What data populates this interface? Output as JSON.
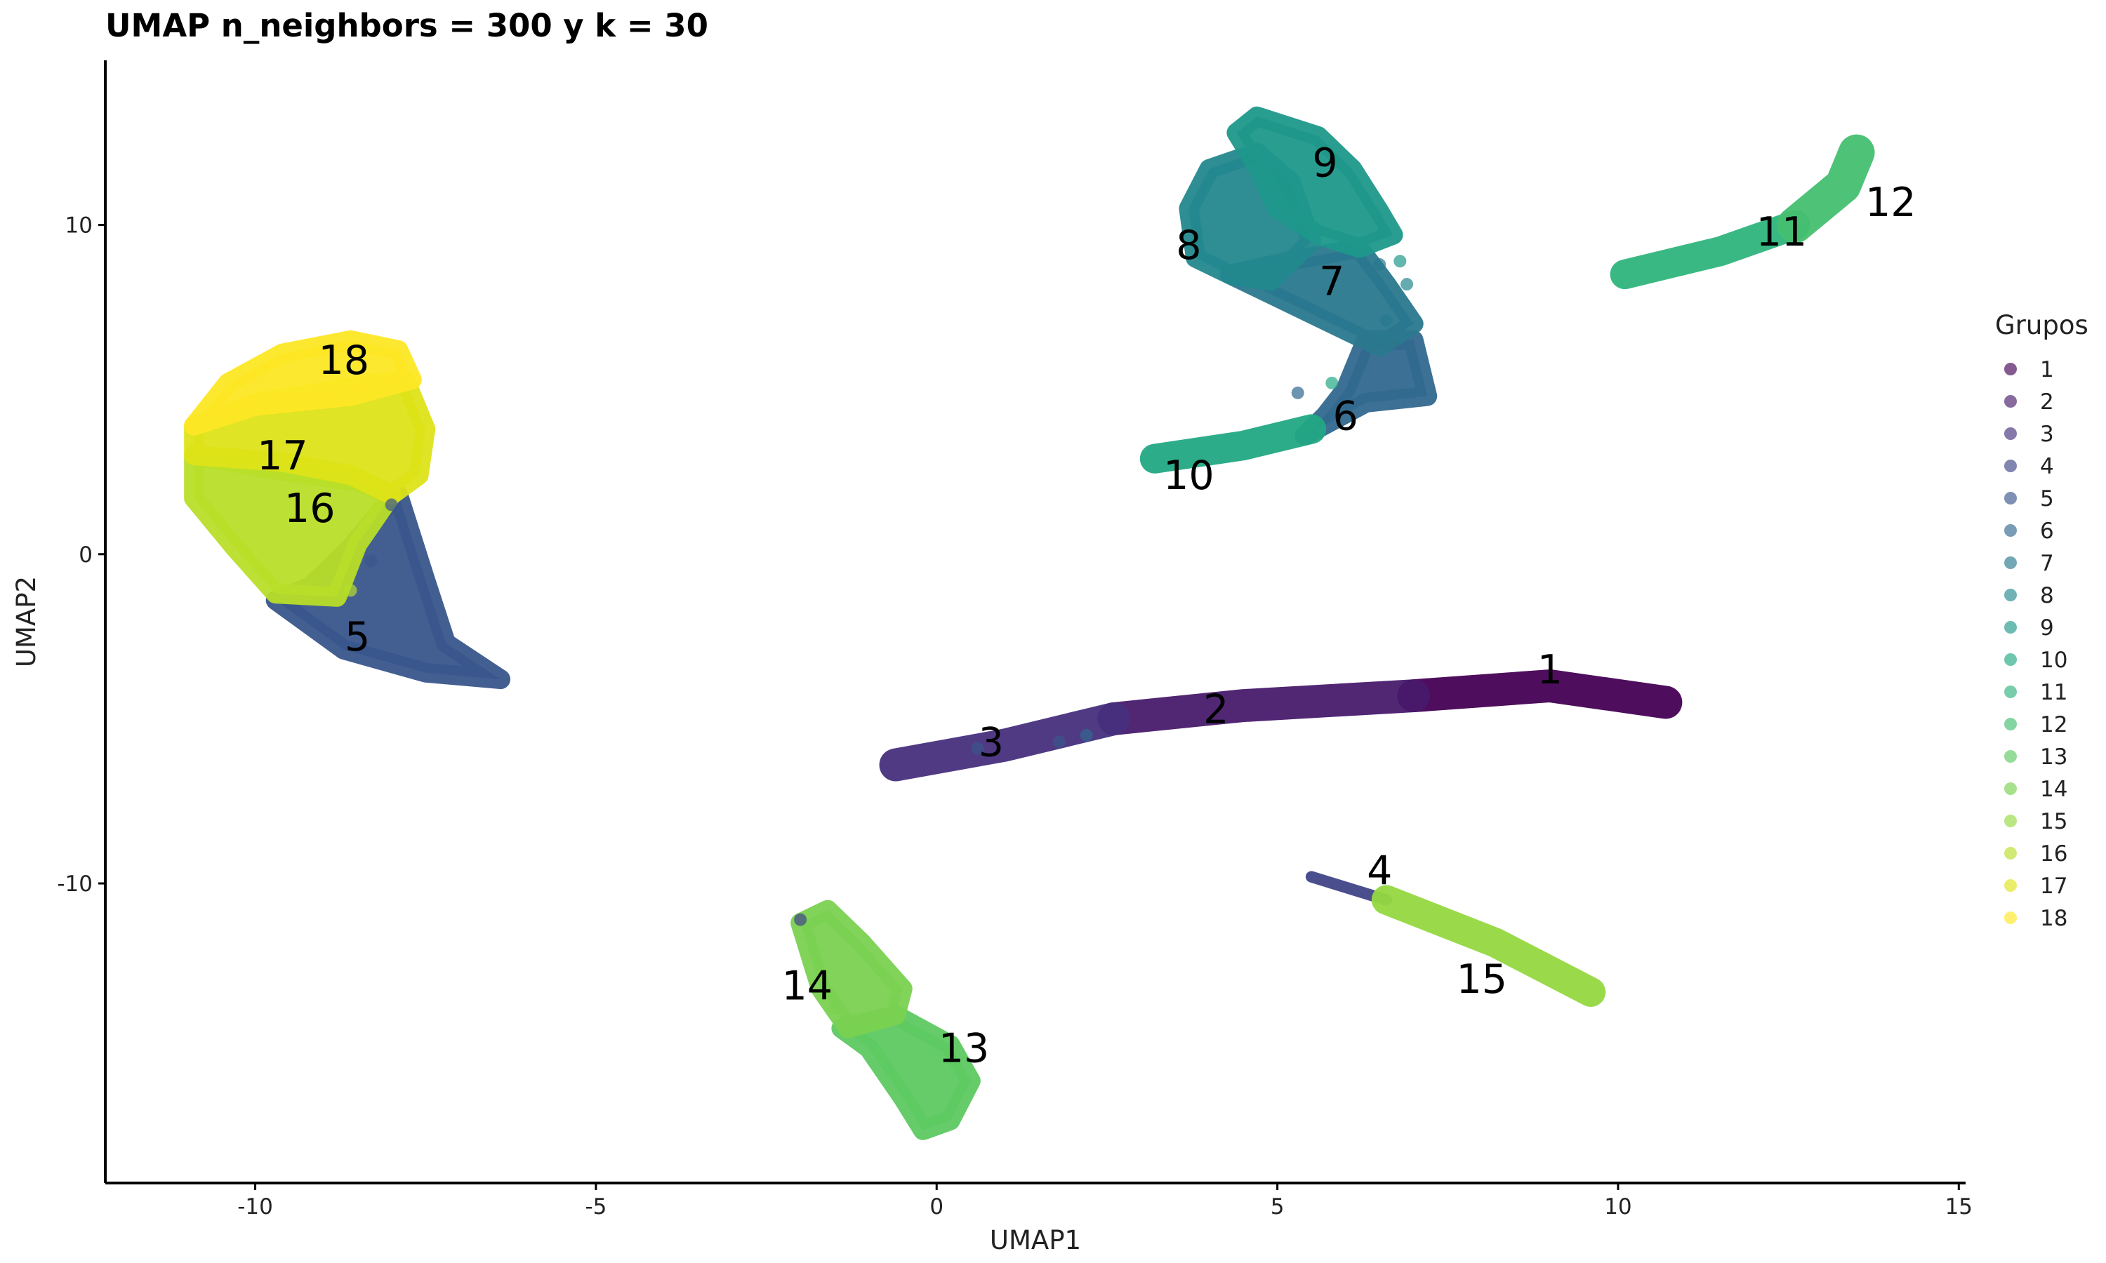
{
  "chart_data": {
    "type": "scatter",
    "title": "UMAP n_neighbors = 300 y k = 30",
    "xlabel": "UMAP1",
    "ylabel": "UMAP2",
    "xlim": [
      -12.2,
      15.1
    ],
    "ylim": [
      -19.1,
      15.0
    ],
    "xticks": [
      -10,
      -5,
      0,
      5,
      10,
      15
    ],
    "xtick_labels": [
      "-10",
      "-5",
      "0",
      "5",
      "10",
      "15"
    ],
    "yticks": [
      -10,
      0,
      10
    ],
    "ytick_labels": [
      "-10",
      "0",
      "10"
    ],
    "grid": false,
    "legend": {
      "title": "Grupos",
      "placement": "right"
    },
    "series": [
      {
        "name": "1",
        "color": "#440154",
        "label_at": [
          9.0,
          -3.5
        ],
        "shape": "line",
        "points": [
          [
            7.0,
            -4.3
          ],
          [
            9.0,
            -4.0
          ],
          [
            10.7,
            -4.5
          ]
        ],
        "width": 1.0
      },
      {
        "name": "2",
        "color": "#481A6C",
        "label_at": [
          4.1,
          -4.7
        ],
        "shape": "line",
        "points": [
          [
            2.6,
            -5.0
          ],
          [
            4.5,
            -4.6
          ],
          [
            7.0,
            -4.3
          ]
        ],
        "width": 1.0
      },
      {
        "name": "3",
        "color": "#472F7D",
        "label_at": [
          0.8,
          -5.7
        ],
        "shape": "line",
        "points": [
          [
            -0.6,
            -6.4
          ],
          [
            1.0,
            -5.8
          ],
          [
            2.6,
            -5.0
          ]
        ],
        "width": 1.0
      },
      {
        "name": "4",
        "color": "#414487",
        "label_at": [
          6.5,
          -9.6
        ],
        "shape": "line",
        "points": [
          [
            5.5,
            -9.8
          ],
          [
            6.6,
            -10.5
          ]
        ],
        "width": 0.35
      },
      {
        "name": "5",
        "color": "#39568C",
        "label_at": [
          -8.5,
          -2.5
        ],
        "shape": "polygon",
        "points": [
          [
            -9.7,
            -1.4
          ],
          [
            -8.7,
            -2.9
          ],
          [
            -7.5,
            -3.6
          ],
          [
            -6.4,
            -3.8
          ],
          [
            -7.2,
            -2.7
          ],
          [
            -7.5,
            -0.8
          ],
          [
            -7.9,
            1.8
          ],
          [
            -8.2,
            1.2
          ],
          [
            -8.6,
            0.2
          ],
          [
            -9.2,
            -1.0
          ]
        ]
      },
      {
        "name": "6",
        "color": "#31688E",
        "label_at": [
          6.0,
          4.2
        ],
        "shape": "polygon",
        "points": [
          [
            5.4,
            3.6
          ],
          [
            6.3,
            4.6
          ],
          [
            7.2,
            4.8
          ],
          [
            7.0,
            6.5
          ],
          [
            6.3,
            6.5
          ],
          [
            6.0,
            5.0
          ],
          [
            5.7,
            4.2
          ]
        ]
      },
      {
        "name": "7",
        "color": "#2A788E",
        "label_at": [
          5.8,
          8.3
        ],
        "shape": "polygon",
        "points": [
          [
            4.3,
            8.5
          ],
          [
            5.4,
            9.0
          ],
          [
            6.2,
            9.3
          ],
          [
            6.6,
            8.2
          ],
          [
            7.0,
            7.0
          ],
          [
            6.5,
            6.3
          ],
          [
            5.8,
            7.0
          ],
          [
            5.0,
            7.8
          ]
        ]
      },
      {
        "name": "8",
        "color": "#23888E",
        "label_at": [
          3.7,
          9.4
        ],
        "shape": "polygon",
        "points": [
          [
            3.8,
            9.0
          ],
          [
            3.7,
            10.5
          ],
          [
            4.0,
            11.7
          ],
          [
            4.7,
            12.2
          ],
          [
            5.2,
            11.3
          ],
          [
            5.5,
            9.5
          ],
          [
            4.9,
            8.3
          ],
          [
            4.3,
            8.5
          ]
        ]
      },
      {
        "name": "9",
        "color": "#1F988B",
        "label_at": [
          5.7,
          11.9
        ],
        "shape": "polygon",
        "points": [
          [
            4.4,
            12.8
          ],
          [
            4.7,
            13.3
          ],
          [
            5.6,
            12.7
          ],
          [
            6.1,
            11.7
          ],
          [
            6.5,
            10.4
          ],
          [
            6.7,
            9.7
          ],
          [
            6.2,
            9.3
          ],
          [
            5.6,
            9.7
          ],
          [
            5.0,
            10.5
          ],
          [
            4.7,
            11.8
          ]
        ]
      },
      {
        "name": "10",
        "color": "#22A884",
        "label_at": [
          3.7,
          2.4
        ],
        "shape": "line",
        "points": [
          [
            3.2,
            2.9
          ],
          [
            4.5,
            3.3
          ],
          [
            5.5,
            3.8
          ]
        ],
        "width": 0.9
      },
      {
        "name": "11",
        "color": "#2FB47C",
        "label_at": [
          12.4,
          9.8
        ],
        "shape": "line",
        "points": [
          [
            10.1,
            8.5
          ],
          [
            11.5,
            9.2
          ],
          [
            12.6,
            10.0
          ]
        ],
        "width": 0.9
      },
      {
        "name": "12",
        "color": "#44BF70",
        "label_at": [
          14.0,
          10.7
        ],
        "shape": "line",
        "points": [
          [
            12.6,
            10.0
          ],
          [
            13.3,
            11.2
          ],
          [
            13.5,
            12.2
          ]
        ],
        "width": 1.1
      },
      {
        "name": "13",
        "color": "#5EC962",
        "label_at": [
          0.4,
          -15.0
        ],
        "shape": "polygon",
        "points": [
          [
            -1.4,
            -14.4
          ],
          [
            -1.0,
            -15.0
          ],
          [
            -0.5,
            -16.5
          ],
          [
            -0.2,
            -17.5
          ],
          [
            0.2,
            -17.2
          ],
          [
            0.5,
            -16.0
          ],
          [
            0.2,
            -14.9
          ],
          [
            -0.6,
            -14.0
          ]
        ]
      },
      {
        "name": "14",
        "color": "#7AD151",
        "label_at": [
          -1.9,
          -13.1
        ],
        "shape": "polygon",
        "points": [
          [
            -2.0,
            -11.2
          ],
          [
            -1.6,
            -10.8
          ],
          [
            -1.1,
            -11.8
          ],
          [
            -0.5,
            -13.2
          ],
          [
            -0.6,
            -14.0
          ],
          [
            -1.3,
            -14.4
          ],
          [
            -1.7,
            -13.2
          ]
        ]
      },
      {
        "name": "15",
        "color": "#95D840",
        "label_at": [
          8.0,
          -12.9
        ],
        "shape": "line",
        "points": [
          [
            6.6,
            -10.5
          ],
          [
            8.2,
            -11.8
          ],
          [
            9.6,
            -13.3
          ]
        ],
        "width": 0.9
      },
      {
        "name": "16",
        "color": "#B8DE29",
        "label_at": [
          -9.2,
          1.4
        ],
        "shape": "polygon",
        "points": [
          [
            -10.9,
            3.0
          ],
          [
            -10.9,
            1.7
          ],
          [
            -10.3,
            0.2
          ],
          [
            -9.7,
            -1.2
          ],
          [
            -8.8,
            -1.3
          ],
          [
            -8.5,
            0.3
          ],
          [
            -8.0,
            1.8
          ],
          [
            -8.5,
            2.2
          ],
          [
            -9.5,
            2.5
          ]
        ]
      },
      {
        "name": "17",
        "color": "#DDE318",
        "label_at": [
          -9.6,
          3.0
        ],
        "shape": "polygon",
        "points": [
          [
            -10.9,
            3.9
          ],
          [
            -10.0,
            4.6
          ],
          [
            -8.5,
            5.1
          ],
          [
            -7.8,
            5.3
          ],
          [
            -7.5,
            3.8
          ],
          [
            -7.6,
            2.4
          ],
          [
            -8.0,
            1.8
          ],
          [
            -8.6,
            2.4
          ],
          [
            -9.6,
            2.8
          ],
          [
            -10.9,
            3.0
          ]
        ]
      },
      {
        "name": "18",
        "color": "#FDE725",
        "label_at": [
          -8.7,
          5.9
        ],
        "shape": "polygon",
        "points": [
          [
            -10.9,
            3.9
          ],
          [
            -10.4,
            5.2
          ],
          [
            -9.6,
            6.1
          ],
          [
            -8.6,
            6.5
          ],
          [
            -7.9,
            6.2
          ],
          [
            -7.7,
            5.3
          ],
          [
            -8.6,
            4.8
          ],
          [
            -10.0,
            4.5
          ]
        ]
      }
    ],
    "stray_points": [
      {
        "group": "6",
        "x": 5.3,
        "y": 4.9
      },
      {
        "group": "7",
        "x": 6.5,
        "y": 8.8
      },
      {
        "group": "10",
        "x": 5.8,
        "y": 5.2
      },
      {
        "group": "9",
        "x": 6.8,
        "y": 8.9
      },
      {
        "group": "8",
        "x": 6.9,
        "y": 8.2
      },
      {
        "group": "7",
        "x": 6.6,
        "y": 7.1
      },
      {
        "group": "5",
        "x": -8.3,
        "y": -0.2
      },
      {
        "group": "16",
        "x": -8.6,
        "y": -1.1
      },
      {
        "group": "5",
        "x": -8.0,
        "y": 1.5
      },
      {
        "group": "4",
        "x": -2.0,
        "y": -11.1
      },
      {
        "group": "14",
        "x": -1.5,
        "y": -13.8
      },
      {
        "group": "5",
        "x": 1.8,
        "y": -5.7
      },
      {
        "group": "6",
        "x": 2.2,
        "y": -5.5
      },
      {
        "group": "5",
        "x": 0.6,
        "y": -5.9
      }
    ]
  }
}
